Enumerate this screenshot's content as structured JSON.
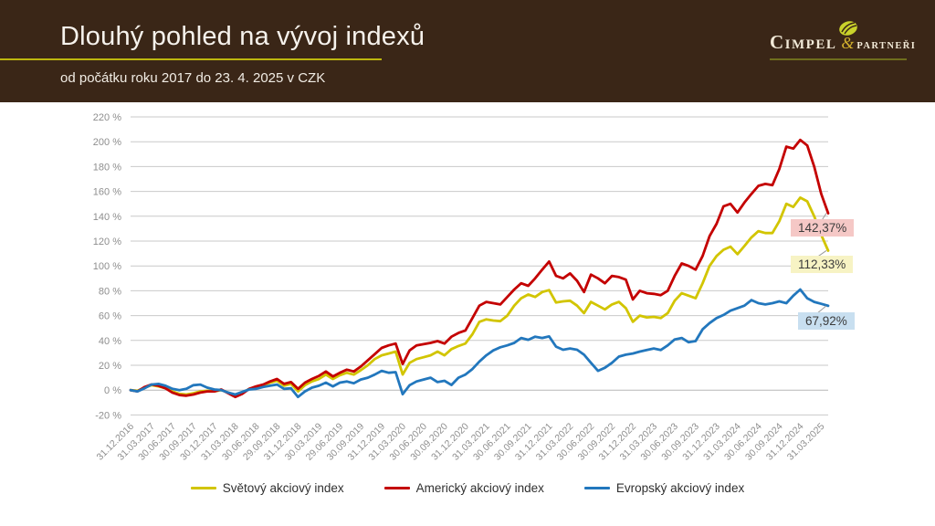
{
  "header": {
    "title": "Dlouhý pohled na vývoj indexů",
    "subtitle": "od počátku roku 2017 do 23. 4. 2025 v CZK",
    "bg_color": "#3a2617",
    "accent_color": "#bdb70e"
  },
  "logo": {
    "name": "Cimpel",
    "ampersand": "&",
    "suffix": "partneři",
    "leaf_icon": "leaf-icon",
    "leaf_color": "#c9d22b"
  },
  "chart_data": {
    "type": "line",
    "grid": true,
    "legend_position": "bottom",
    "grid_color": "#c9c9c9",
    "tick_color": "#8e8e8e",
    "y_axis": {
      "min": -20,
      "max": 220,
      "step": 20,
      "suffix": " %"
    },
    "x_labels": [
      "31.12.2016",
      "31.03.2017",
      "30.06.2017",
      "30.09.2017",
      "30.12.2017",
      "31.03.2018",
      "30.06.2018",
      "29.09.2018",
      "31.12.2018",
      "30.03.2019",
      "29.06.2019",
      "30.09.2019",
      "31.12.2019",
      "31.03.2020",
      "30.06.2020",
      "30.09.2020",
      "31.12.2020",
      "31.03.2021",
      "30.06.2021",
      "30.09.2021",
      "31.12.2021",
      "31.03.2022",
      "30.06.2022",
      "30.09.2022",
      "31.12.2022",
      "31.03.2023",
      "30.06.2023",
      "30.09.2023",
      "31.12.2023",
      "31.03.2024",
      "30.06.2024",
      "30.09.2024",
      "31.12.2024",
      "31.03.2025"
    ],
    "series": [
      {
        "name": "Světový akciový index",
        "color": "#d2c500",
        "end_label": "112,33%",
        "end_value": 112.33,
        "label_bg": "#f7f3c4",
        "values": [
          0,
          -0.5,
          2,
          4,
          3,
          1.5,
          -1,
          -3,
          -3.5,
          -2.5,
          -1,
          -0.5,
          -1,
          0,
          -2,
          -4.5,
          -2.5,
          1,
          2.5,
          4,
          6,
          7.5,
          3.5,
          5,
          -1,
          4,
          7,
          9,
          12.5,
          9,
          12,
          14,
          12.5,
          16,
          20,
          25,
          28,
          29.5,
          31,
          12.6,
          22,
          25,
          26.5,
          28,
          31,
          28,
          33,
          35.5,
          37.5,
          45,
          55,
          57,
          56,
          55.5,
          60,
          68,
          74,
          77,
          75,
          79,
          80.5,
          70.5,
          71.5,
          72,
          68,
          62,
          71,
          68,
          65,
          69,
          71,
          66,
          55,
          60,
          58.5,
          59,
          58,
          62,
          72,
          78,
          76,
          74,
          86,
          100,
          108,
          113,
          115.5,
          109.5,
          116,
          123,
          128,
          126.5,
          126.5,
          136,
          150,
          147.5,
          155,
          152,
          140,
          125,
          112.3
        ]
      },
      {
        "name": "Americký akciový index",
        "color": "#c40000",
        "end_label": "142,37%",
        "end_value": 142.37,
        "label_bg": "#f5c8c6",
        "values": [
          0,
          -1,
          2.5,
          4.5,
          3.5,
          1.5,
          -2,
          -4,
          -4.5,
          -3.5,
          -2,
          -1,
          -1,
          0.5,
          -2.5,
          -5.5,
          -3,
          1,
          3,
          4.5,
          7,
          9,
          5,
          6.5,
          1,
          6,
          9,
          11.5,
          15,
          11,
          14,
          16.5,
          15,
          19,
          24,
          29,
          34,
          36,
          37.5,
          21,
          32,
          36,
          37,
          38,
          39.5,
          37.5,
          43,
          46,
          48,
          58,
          68,
          71,
          70,
          69,
          75,
          81,
          86,
          84,
          90,
          97,
          103.5,
          92,
          90,
          94,
          88,
          79,
          93,
          90,
          86,
          92,
          91,
          89,
          73,
          80,
          78,
          77.5,
          76.5,
          80,
          92,
          102,
          100,
          97,
          108,
          124,
          134,
          148,
          150,
          143,
          151,
          158,
          164.5,
          166,
          165,
          178,
          196,
          194.5,
          201.5,
          197,
          180,
          158,
          142.4
        ]
      },
      {
        "name": "Evropský akciový index",
        "color": "#2277bd",
        "end_label": "67,92%",
        "end_value": 67.92,
        "label_bg": "#c8dff0",
        "values": [
          0,
          -1,
          1.5,
          4.5,
          5,
          3.5,
          1,
          0,
          1,
          4,
          4.5,
          2,
          0.5,
          0,
          -2,
          -3.5,
          -1.5,
          0.5,
          1,
          2.5,
          3.5,
          4.5,
          1,
          1.5,
          -5.5,
          -1,
          2,
          3.5,
          6,
          3,
          6,
          7,
          5.5,
          8.5,
          10,
          12.5,
          15.5,
          14,
          14.5,
          -3.3,
          4,
          7,
          8.5,
          10,
          6.5,
          7.5,
          4.1,
          10,
          12.5,
          17,
          23,
          28,
          32,
          34.5,
          36,
          38,
          42,
          40.5,
          43,
          42,
          43.2,
          35,
          32.5,
          33.5,
          32.5,
          28.5,
          22,
          15.5,
          18,
          22,
          27,
          28.5,
          29.5,
          31,
          32.3,
          33.5,
          32.3,
          36,
          40.8,
          42,
          38.5,
          39.5,
          49,
          54,
          58,
          60.5,
          64,
          66,
          68,
          72.5,
          70,
          69,
          70,
          71.5,
          70,
          76,
          81,
          74,
          71,
          69.5,
          67.9
        ]
      }
    ]
  }
}
